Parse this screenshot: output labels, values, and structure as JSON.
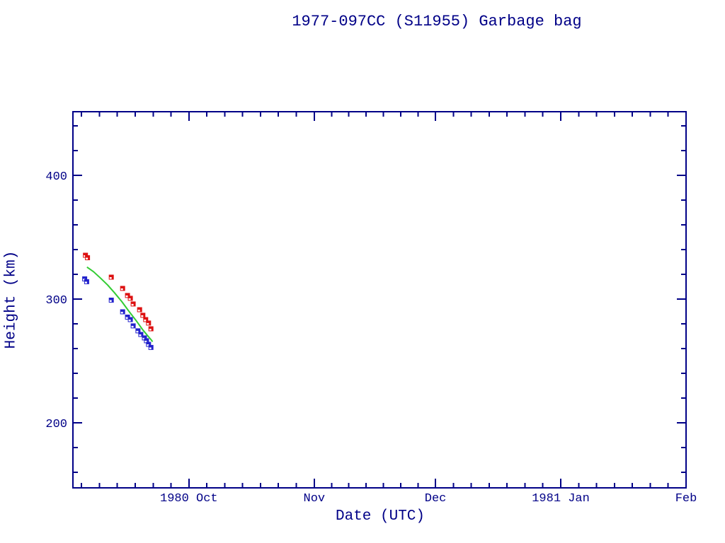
{
  "colors": {
    "axis": "#000087",
    "background": "#ffffff",
    "red_series": "#dd1111",
    "blue_series": "#2222cc",
    "green_line": "#33cc33"
  },
  "chart_data": {
    "type": "scatter",
    "title": "1977-097CC (S11955) Garbage bag",
    "xlabel": "Date (UTC)",
    "ylabel": "Height (km)",
    "x_unit": "days since 1980-09-01 00:00 UTC",
    "xlim": [
      1.3,
      153.0
    ],
    "ylim": [
      147.4,
      451.4
    ],
    "grid": false,
    "legend": "none",
    "x_major_ticks": [
      {
        "t": 30,
        "label": "1980 Oct"
      },
      {
        "t": 61,
        "label": "Nov"
      },
      {
        "t": 91,
        "label": "Dec"
      },
      {
        "t": 122,
        "label": "1981 Jan"
      },
      {
        "t": 153,
        "label": "Feb"
      }
    ],
    "x_minor_ticks": [
      3.43,
      7.86,
      12.29,
      16.71,
      21.14,
      25.57,
      34.43,
      38.86,
      43.29,
      47.71,
      52.14,
      56.57,
      65.29,
      69.57,
      73.86,
      78.14,
      82.43,
      86.71,
      95.43,
      99.86,
      104.29,
      108.71,
      113.14,
      117.57,
      126.43,
      130.86,
      135.29,
      139.71,
      144.14,
      148.57
    ],
    "y_major_ticks": [
      {
        "v": 200,
        "label": "200"
      },
      {
        "v": 300,
        "label": "300"
      },
      {
        "v": 400,
        "label": "400"
      }
    ],
    "y_minor_ticks": [
      160,
      180,
      220,
      240,
      260,
      280,
      320,
      340,
      360,
      380,
      420,
      440
    ],
    "series": [
      {
        "name": "red squares (upper height series)",
        "kind": "scatter",
        "marker": "square-notch",
        "color": "#dd1111",
        "points": [
          [
            4.4,
            335.4
          ],
          [
            4.9,
            333.4
          ],
          [
            10.8,
            317.7
          ],
          [
            13.6,
            308.6
          ],
          [
            14.8,
            302.9
          ],
          [
            15.5,
            300.6
          ],
          [
            16.2,
            296.0
          ],
          [
            17.8,
            291.4
          ],
          [
            18.6,
            286.9
          ],
          [
            19.3,
            283.4
          ],
          [
            20.0,
            280.6
          ],
          [
            20.6,
            276.0
          ]
        ]
      },
      {
        "name": "blue squares (lower height series)",
        "kind": "scatter",
        "marker": "square-notch",
        "color": "#2222cc",
        "points": [
          [
            4.2,
            316.3
          ],
          [
            4.7,
            314.0
          ],
          [
            10.8,
            299.1
          ],
          [
            13.6,
            289.7
          ],
          [
            14.8,
            285.4
          ],
          [
            15.5,
            283.4
          ],
          [
            16.2,
            278.3
          ],
          [
            17.4,
            274.3
          ],
          [
            18.1,
            271.4
          ],
          [
            19.0,
            268.6
          ],
          [
            19.5,
            266.3
          ],
          [
            20.0,
            263.4
          ],
          [
            20.6,
            260.9
          ]
        ]
      },
      {
        "name": "green line (smoothed height model)",
        "kind": "line",
        "color": "#33cc33",
        "points": [
          [
            4.75,
            325.7
          ],
          [
            4.9,
            325.5
          ],
          [
            6.4,
            322.1
          ],
          [
            8.1,
            317.0
          ],
          [
            9.9,
            311.3
          ],
          [
            11.6,
            305.0
          ],
          [
            13.4,
            297.9
          ],
          [
            15.1,
            290.3
          ],
          [
            16.9,
            282.7
          ],
          [
            18.6,
            275.0
          ],
          [
            19.8,
            270.3
          ],
          [
            20.7,
            266.9
          ],
          [
            21.0,
            265.5
          ]
        ]
      }
    ]
  }
}
